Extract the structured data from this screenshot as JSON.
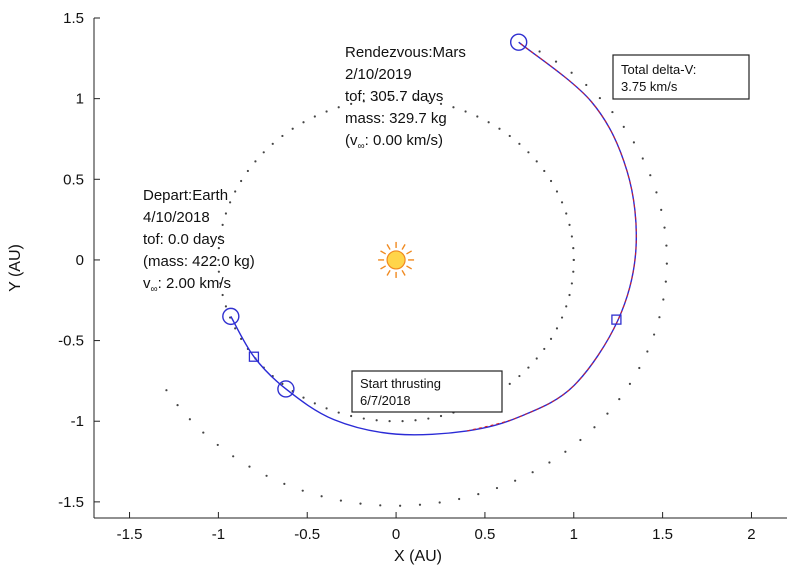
{
  "chart_data": {
    "type": "scatter",
    "title": "",
    "xlabel": "X (AU)",
    "ylabel": "Y (AU)",
    "xlim": [
      -1.7,
      2.2
    ],
    "ylim": [
      -1.6,
      1.5
    ],
    "xticks": [
      -1.5,
      -1,
      -0.5,
      0,
      0.5,
      1,
      1.5,
      2
    ],
    "xtick_labels": [
      "-1.5",
      "-1",
      "-0.5",
      "0",
      "0.5",
      "1",
      "1.5",
      "2"
    ],
    "yticks": [
      -1.5,
      -1,
      -0.5,
      0,
      0.5,
      1,
      1.5
    ],
    "ytick_labels": [
      "-1.5",
      "-1",
      "-0.5",
      "0",
      "0.5",
      "1",
      "1.5"
    ],
    "grid": false,
    "colors": {
      "trajectory_coast": "#2b2bd6",
      "trajectory_thrust": "#d62020",
      "markers": "#3030d0",
      "orbits": "#444444",
      "sun_fill": "#ffd54a",
      "sun_ray": "#f08a20"
    },
    "orbits": [
      {
        "name": "Earth orbit",
        "radius": 1.0,
        "style": "dotted"
      },
      {
        "name": "Mars orbit",
        "radius": 1.524,
        "style": "dotted",
        "visible_theta_range_deg": [
          -148,
          58
        ]
      }
    ],
    "sun": {
      "x": 0,
      "y": 0,
      "icon": "sun-icon"
    },
    "trajectory": {
      "description_points": [
        {
          "x": -0.93,
          "y": -0.35
        },
        {
          "x": -0.8,
          "y": -0.6
        },
        {
          "x": -0.62,
          "y": -0.8
        },
        {
          "x": -0.35,
          "y": -0.99
        },
        {
          "x": 0.0,
          "y": -1.08
        },
        {
          "x": 0.4,
          "y": -1.06
        },
        {
          "x": 0.7,
          "y": -0.97
        },
        {
          "x": 1.0,
          "y": -0.78
        },
        {
          "x": 1.25,
          "y": -0.37
        },
        {
          "x": 1.35,
          "y": 0.07
        },
        {
          "x": 1.3,
          "y": 0.55
        },
        {
          "x": 1.1,
          "y": 0.98
        },
        {
          "x": 0.69,
          "y": 1.35
        }
      ],
      "thrust_start_index": 5
    },
    "markers": [
      {
        "type": "circle",
        "x": -0.93,
        "y": -0.35
      },
      {
        "type": "circle",
        "x": -0.62,
        "y": -0.8
      },
      {
        "type": "circle",
        "x": 0.69,
        "y": 1.35
      },
      {
        "type": "square",
        "x": -0.8,
        "y": -0.6
      },
      {
        "type": "square",
        "x": 1.24,
        "y": -0.37
      }
    ]
  },
  "annotations": {
    "rendezvous": {
      "lines": [
        "Rendezvous:Mars",
        "2/10/2019",
        "tof: 305.7 days",
        "mass: 329.7 kg",
        "(v",
        "∞",
        ": 0.00 km/s)"
      ]
    },
    "depart": {
      "lines": [
        "Depart:Earth",
        "4/10/2018",
        "tof: 0.0 days",
        "(mass: 422.0 kg)",
        "v",
        "∞",
        ": 2.00 km/s"
      ]
    },
    "total_dv": {
      "lines": [
        "Total delta-V:",
        "3.75 km/s"
      ]
    },
    "start_thrusting": {
      "lines": [
        "Start thrusting",
        "6/7/2018"
      ]
    }
  }
}
